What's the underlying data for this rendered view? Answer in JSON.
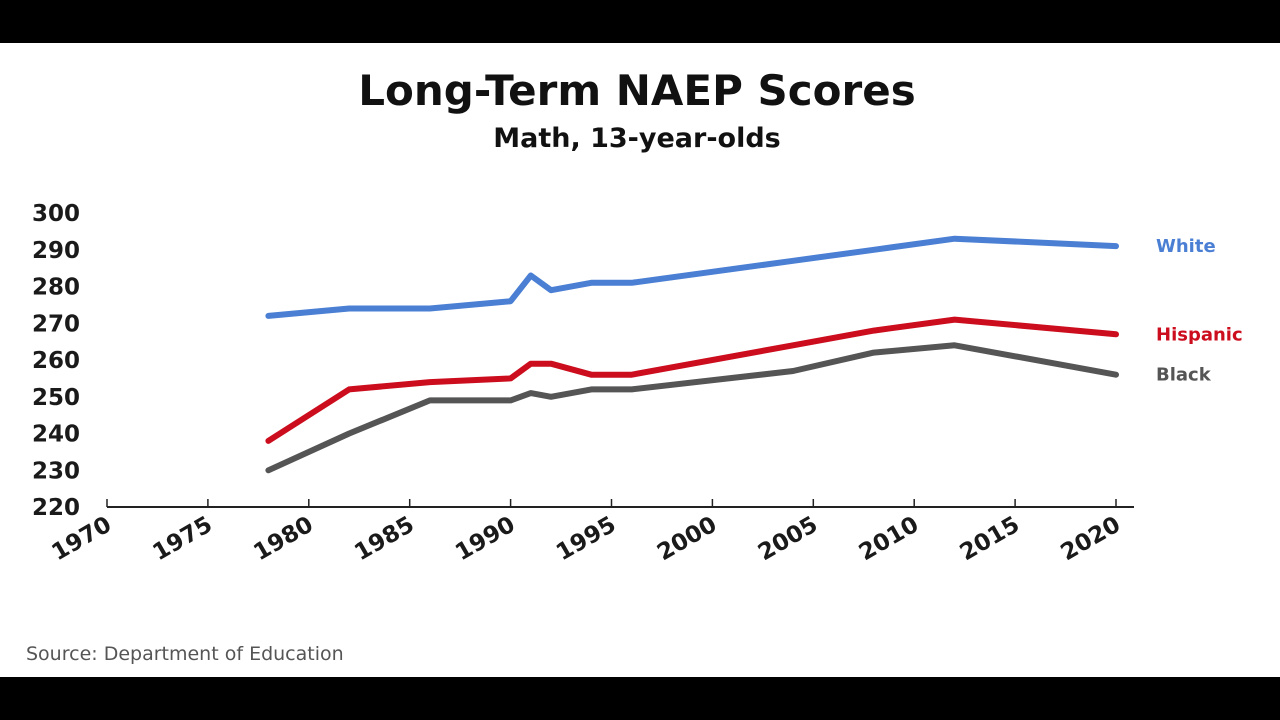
{
  "chart_data": {
    "type": "line",
    "title": "Long-Term NAEP Scores",
    "subtitle": "Math, 13-year-olds",
    "xlabel": "",
    "ylabel": "",
    "xlim": [
      1970,
      2020
    ],
    "ylim": [
      220,
      300
    ],
    "x_ticks": [
      1970,
      1975,
      1980,
      1985,
      1990,
      1995,
      2000,
      2005,
      2010,
      2015,
      2020
    ],
    "y_ticks": [
      220,
      230,
      240,
      250,
      260,
      270,
      280,
      290,
      300
    ],
    "grid": false,
    "legend": "inline-right",
    "series": [
      {
        "name": "White",
        "color": "#4a7fd4",
        "x": [
          1978,
          1982,
          1986,
          1990,
          1991,
          1992,
          1994,
          1996,
          2004,
          2008,
          2012,
          2020
        ],
        "values": [
          272,
          274,
          274,
          276,
          283,
          279,
          281,
          281,
          287,
          290,
          293,
          291
        ]
      },
      {
        "name": "Hispanic",
        "color": "#cc0d1e",
        "x": [
          1978,
          1982,
          1986,
          1990,
          1991,
          1992,
          1994,
          1996,
          2004,
          2008,
          2012,
          2020
        ],
        "values": [
          238,
          252,
          254,
          255,
          259,
          259,
          256,
          256,
          264,
          268,
          271,
          267
        ]
      },
      {
        "name": "Black",
        "color": "#555555",
        "x": [
          1978,
          1982,
          1986,
          1990,
          1991,
          1992,
          1994,
          1996,
          2004,
          2008,
          2012,
          2020
        ],
        "values": [
          230,
          240,
          249,
          249,
          251,
          250,
          252,
          252,
          257,
          262,
          264,
          256
        ]
      }
    ]
  },
  "source": "Source:  Department  of  Education"
}
